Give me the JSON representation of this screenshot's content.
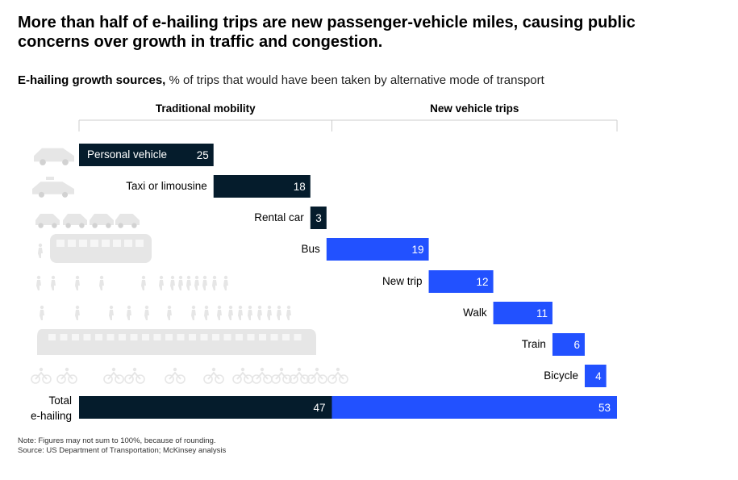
{
  "header": {
    "title": "More than half of e-hailing trips are new passenger-vehicle miles, causing public concerns over growth in traffic and congestion.",
    "subtitle_bold": "E-hailing growth sources,",
    "subtitle_rest": " % of trips that would have been taken by alternative mode of transport"
  },
  "footer": {
    "note": "Note: Figures may not sum to 100%, because of rounding.",
    "source": "Source: US Department of Transportation; McKinsey analysis"
  },
  "colors": {
    "traditional": "#051c2c",
    "new_vehicle": "#2251ff",
    "icons": "#e6e6e6",
    "bracket": "#cccccc"
  },
  "chart_data": {
    "type": "bar",
    "subtype": "waterfall",
    "groups": [
      {
        "name": "Traditional mobility",
        "start": 0,
        "end": 47
      },
      {
        "name": "New vehicle trips",
        "start": 47,
        "end": 100
      }
    ],
    "categories": [
      "Personal vehicle",
      "Taxi or limousine",
      "Rental car",
      "Bus",
      "New trip",
      "Walk",
      "Train",
      "Bicycle"
    ],
    "values": [
      25,
      18,
      3,
      19,
      12,
      11,
      6,
      4
    ],
    "group_of_category": [
      "Traditional mobility",
      "Traditional mobility",
      "Traditional mobility",
      "New vehicle trips",
      "New vehicle trips",
      "New vehicle trips",
      "New vehicle trips",
      "New vehicle trips"
    ],
    "icons": [
      "car-icon",
      "taxi-icon",
      "small-cars-icon",
      "bus-icon",
      "walkers-icon",
      "pedestrians-icon",
      "train-icon",
      "bicycles-icon"
    ],
    "total": {
      "label_line1": "Total",
      "label_line2": "e-hailing",
      "values": [
        47,
        53
      ]
    }
  }
}
